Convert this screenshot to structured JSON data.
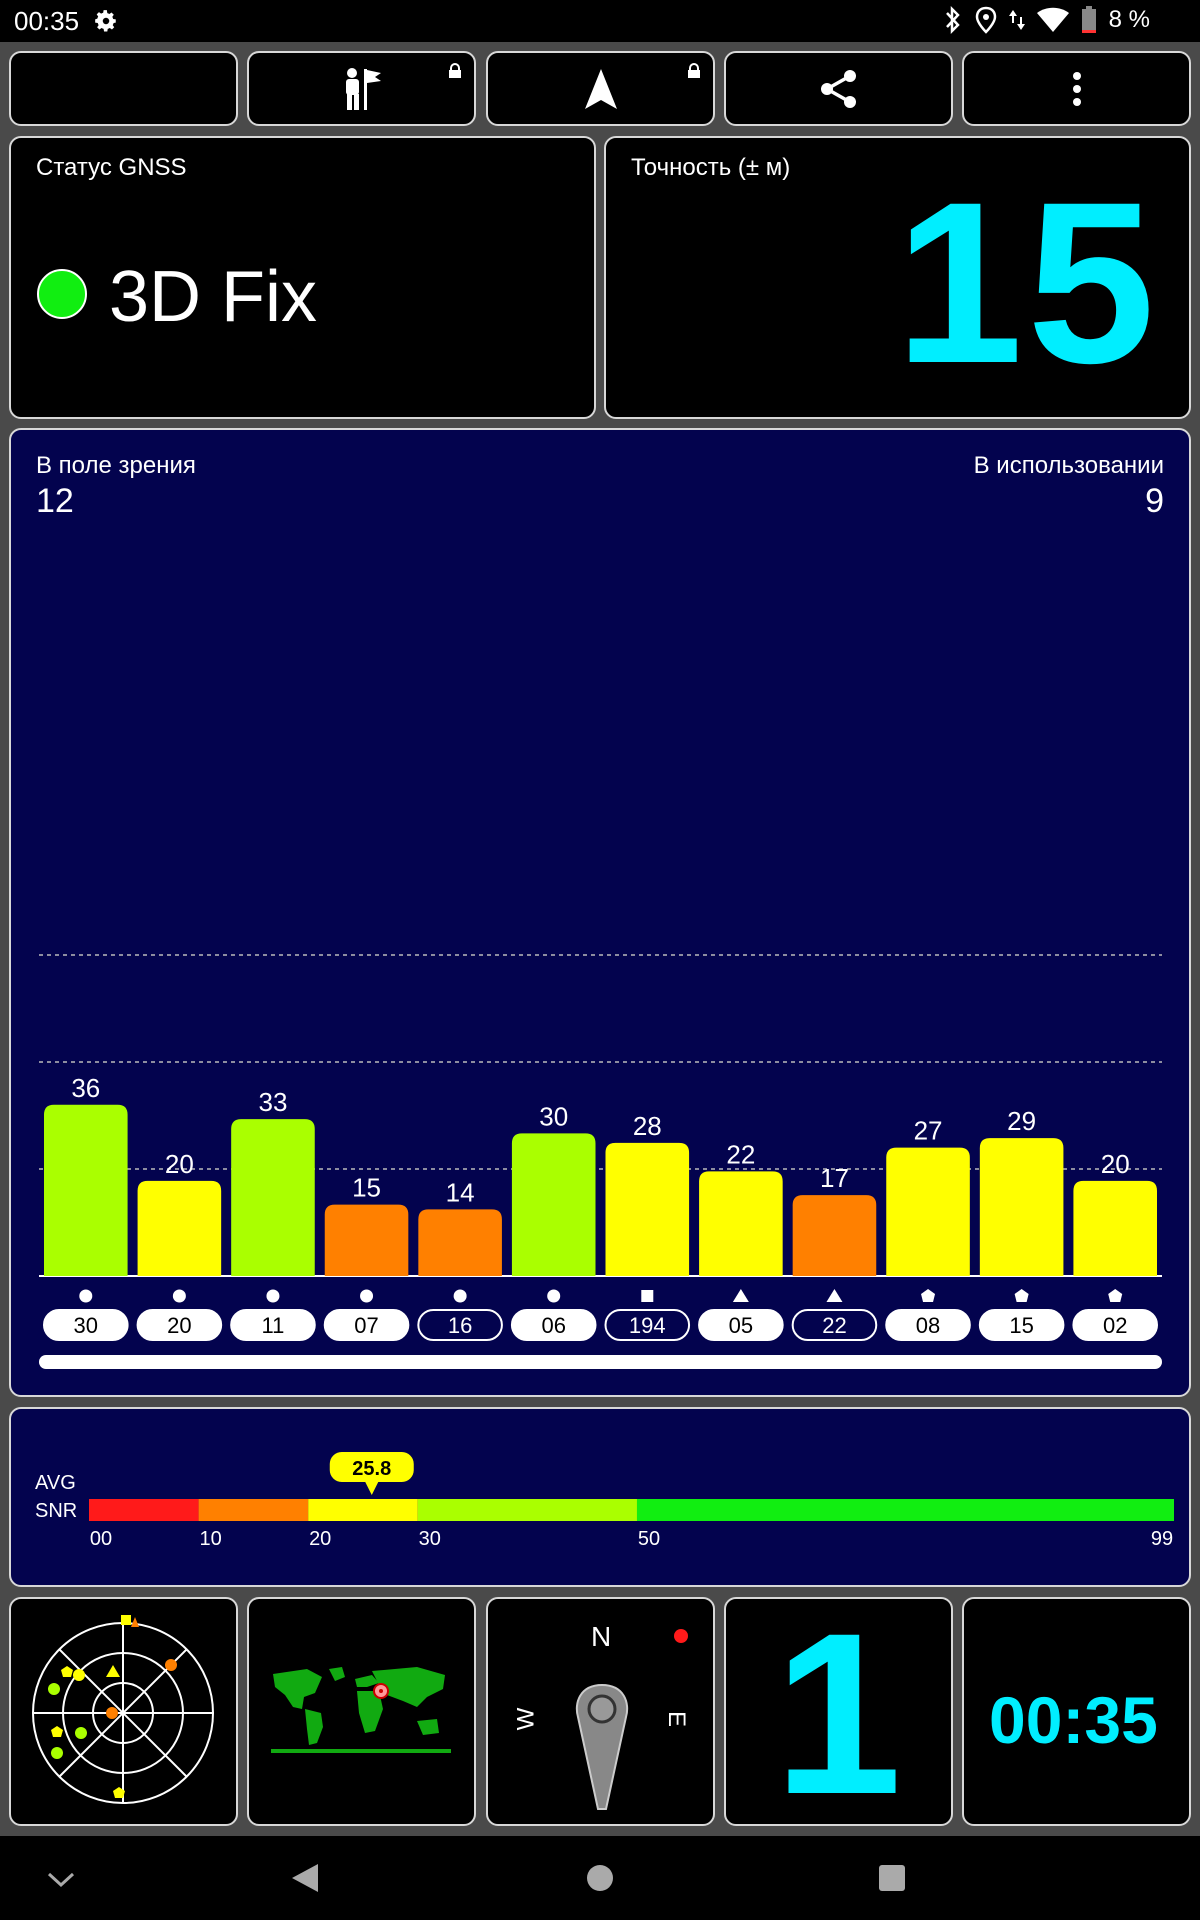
{
  "status_bar": {
    "time": "00:35",
    "battery": "8 %",
    "icons": [
      "settings-icon",
      "bluetooth-icon",
      "location-icon",
      "data-arrows-icon",
      "wifi-icon",
      "battery-icon"
    ]
  },
  "toolbar": [
    {
      "name": "night-mode-button",
      "icon": "moon-icon",
      "locked": false
    },
    {
      "name": "hiker-flag-button",
      "icon": "hiker-flag-icon",
      "locked": true
    },
    {
      "name": "navigation-button",
      "icon": "navigation-arrow-icon",
      "locked": true
    },
    {
      "name": "share-button",
      "icon": "share-icon",
      "locked": false
    },
    {
      "name": "more-button",
      "icon": "more-vertical-icon",
      "locked": false
    }
  ],
  "gnss_status": {
    "label": "Статус GNSS",
    "value": "3D Fix",
    "color": "#11ee11"
  },
  "accuracy": {
    "label": "Точность (± м)",
    "value": "15",
    "color": "#00eeff"
  },
  "satellites": {
    "in_view_label": "В поле зрения",
    "in_view": "12",
    "in_use_label": "В использовании",
    "in_use": "9"
  },
  "chart_data": {
    "type": "bar",
    "categories": [
      "30",
      "20",
      "11",
      "07",
      "16",
      "06",
      "194",
      "05",
      "22",
      "08",
      "15",
      "02"
    ],
    "values": [
      36,
      20,
      33,
      15,
      14,
      30,
      28,
      22,
      17,
      27,
      29,
      20
    ],
    "value_labels": [
      "36",
      "20",
      "33",
      "15",
      "14",
      "30",
      "28",
      "22",
      "17",
      "27",
      "29",
      "20"
    ],
    "constellation_symbols": [
      "circle",
      "circle",
      "circle",
      "circle",
      "circle",
      "circle",
      "square",
      "triangle",
      "triangle",
      "pentagon",
      "pentagon",
      "pentagon"
    ],
    "in_use": [
      true,
      true,
      true,
      true,
      false,
      true,
      false,
      true,
      false,
      true,
      true,
      true
    ],
    "ylim": [
      0,
      90
    ],
    "gridlines": [
      22.5,
      45,
      67.5
    ],
    "color_scale": {
      "red": "#ff1a1a",
      "orange": "#ff8000",
      "yellow": "#ffff00",
      "lime": "#aaff00",
      "green": "#11ee11"
    }
  },
  "snr": {
    "label_line1": "AVG",
    "label_line2": "SNR",
    "avg": 25.8,
    "avg_label": "25.8",
    "scale_labels": [
      "00",
      "10",
      "20",
      "30",
      "50",
      "99"
    ],
    "segments": [
      {
        "from": 0,
        "to": 10,
        "color": "#ff1a1a"
      },
      {
        "from": 10,
        "to": 20,
        "color": "#ff8000"
      },
      {
        "from": 20,
        "to": 30,
        "color": "#ffff00"
      },
      {
        "from": 30,
        "to": 50,
        "color": "#aaff00"
      },
      {
        "from": 50,
        "to": 99,
        "color": "#11ee11"
      }
    ]
  },
  "tiles": {
    "compass": {
      "n": "N",
      "e": "E",
      "w": "W"
    },
    "fix_count": "1",
    "clock": "00:35"
  },
  "nav": {
    "icons": [
      "collapse-chevron-icon",
      "back-icon",
      "home-icon",
      "recents-icon"
    ]
  }
}
